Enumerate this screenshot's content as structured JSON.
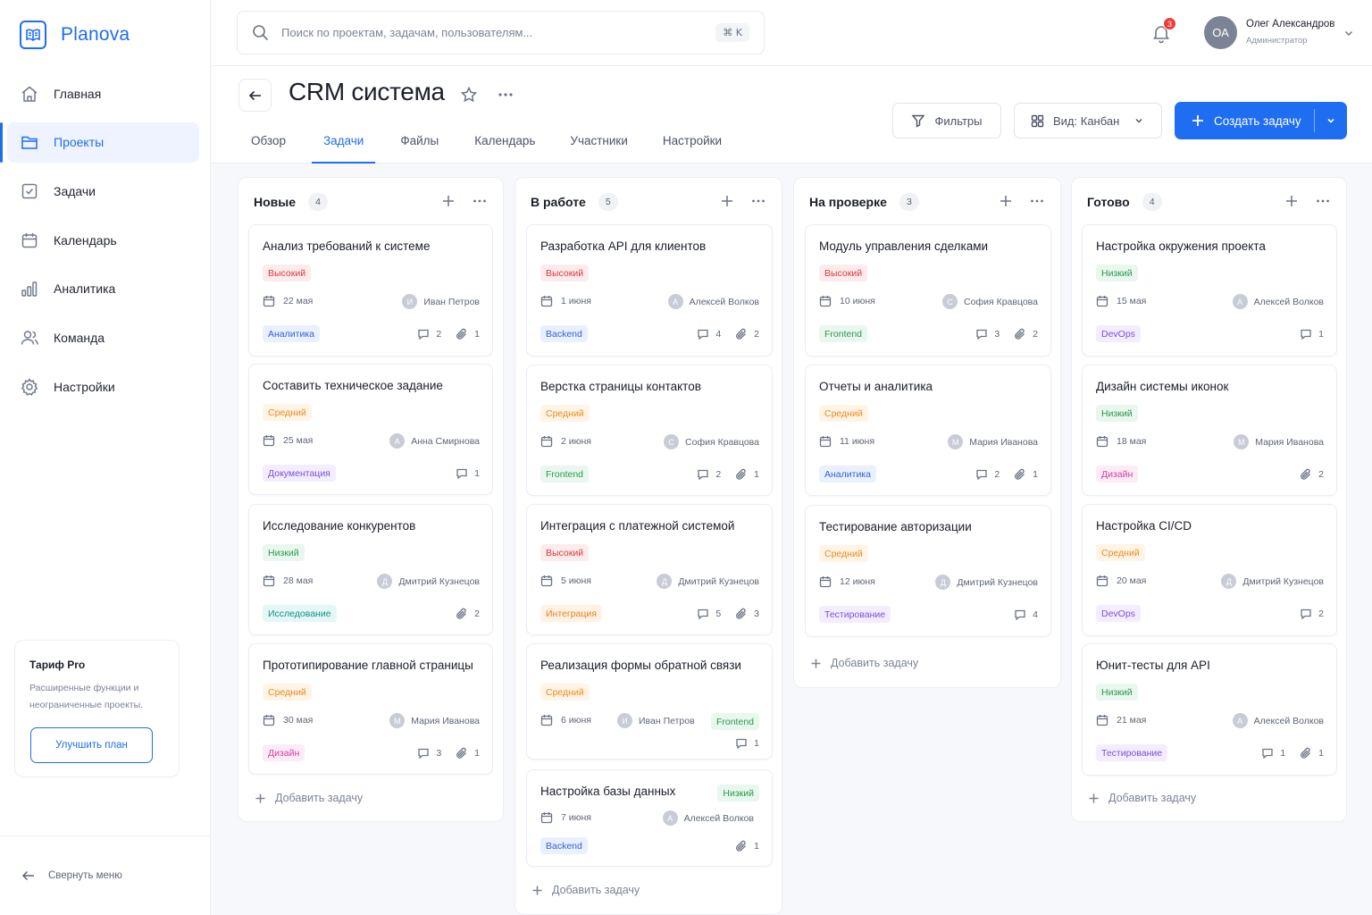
{
  "brand": {
    "name": "Planova"
  },
  "sidebar": {
    "items": [
      {
        "label": "Главная",
        "icon": "home-icon",
        "active": false
      },
      {
        "label": "Проекты",
        "icon": "folder-icon",
        "active": true
      },
      {
        "label": "Задачи",
        "icon": "checkbox-icon",
        "active": false
      },
      {
        "label": "Календарь",
        "icon": "calendar-icon",
        "active": false
      },
      {
        "label": "Аналитика",
        "icon": "chart-icon",
        "active": false
      },
      {
        "label": "Команда",
        "icon": "users-icon",
        "active": false
      },
      {
        "label": "Настройки",
        "icon": "gear-icon",
        "active": false
      }
    ],
    "plan": {
      "title": "Тариф Pro",
      "desc": "Расширенные функции и неограниченные проекты.",
      "button": "Улучшить план"
    },
    "collapse_label": "Свернуть меню"
  },
  "topbar": {
    "search_placeholder": "Поиск по проектам, задачам, пользователям...",
    "shortcut": "⌘ K",
    "notifications": "3",
    "user": {
      "initials": "ОА",
      "name": "Олег Александров",
      "role": "Администратор"
    }
  },
  "header": {
    "title": "CRM система",
    "tabs": [
      "Обзор",
      "Задачи",
      "Файлы",
      "Календарь",
      "Участники",
      "Настройки"
    ],
    "active_tab": 1,
    "filters_label": "Фильтры",
    "view_label": "Вид: Канбан",
    "create_label": "Создать задачу"
  },
  "board": {
    "add_task_label": "Добавить задачу",
    "columns": [
      {
        "title": "Новые",
        "count": "4",
        "cards": [
          {
            "title": "Анализ требований к системе",
            "priority": "Высокий",
            "pclass": "p-high",
            "date": "22 мая",
            "assignee": "Иван Петров",
            "initial": "И",
            "tag": "Аналитика",
            "tclass": "t-blue",
            "comments": "2",
            "attachments": "1"
          },
          {
            "title": "Составить техническое задание",
            "priority": "Средний",
            "pclass": "p-mid",
            "date": "25 мая",
            "assignee": "Анна Смирнова",
            "initial": "А",
            "tag": "Документация",
            "tclass": "t-purple",
            "comments": "1",
            "attachments": ""
          },
          {
            "title": "Исследование конкурентов",
            "priority": "Низкий",
            "pclass": "p-low",
            "date": "28 мая",
            "assignee": "Дмитрий Кузнецов",
            "initial": "Д",
            "tag": "Исследование",
            "tclass": "t-teal",
            "comments": "",
            "attachments": "2"
          },
          {
            "title": "Прототипирование главной страницы",
            "priority": "Средний",
            "pclass": "p-mid",
            "date": "30 мая",
            "assignee": "Мария Иванова",
            "initial": "М",
            "tag": "Дизайн",
            "tclass": "t-pink",
            "comments": "3",
            "attachments": "1"
          }
        ]
      },
      {
        "title": "В работе",
        "count": "5",
        "cards": [
          {
            "title": "Разработка API для клиентов",
            "priority": "Высокий",
            "pclass": "p-high",
            "date": "1 июня",
            "assignee": "Алексей Волков",
            "initial": "А",
            "tag": "Backend",
            "tclass": "t-blue",
            "comments": "4",
            "attachments": "2"
          },
          {
            "title": "Верстка страницы контактов",
            "priority": "Средний",
            "pclass": "p-mid",
            "date": "2 июня",
            "assignee": "София Кравцова",
            "initial": "С",
            "tag": "Frontend",
            "tclass": "t-green",
            "comments": "2",
            "attachments": "1"
          },
          {
            "title": "Интеграция с платежной системой",
            "priority": "Высокий",
            "pclass": "p-high",
            "date": "5 июня",
            "assignee": "Дмитрий Кузнецов",
            "initial": "Д",
            "tag": "Интеграция",
            "tclass": "t-orange",
            "comments": "5",
            "attachments": "3"
          },
          {
            "title": "Реализация формы обратной связи",
            "priority": "Средний",
            "pclass": "p-mid",
            "date": "6 июня",
            "assignee": "Иван Петров",
            "initial": "И",
            "tag": "Frontend",
            "tclass": "t-green",
            "comments": "1",
            "attachments": ""
          },
          {
            "title": "Настройка базы данных",
            "priority": "Низкий",
            "pclass": "p-low",
            "date": "7 июня",
            "assignee": "Алексей Волков",
            "initial": "А",
            "tag": "Backend",
            "tclass": "t-blue",
            "comments": "",
            "attachments": "1"
          }
        ]
      },
      {
        "title": "На проверке",
        "count": "3",
        "cards": [
          {
            "title": "Модуль управления сделками",
            "priority": "Высокий",
            "pclass": "p-high",
            "date": "10 июня",
            "assignee": "София Кравцова",
            "initial": "С",
            "tag": "Frontend",
            "tclass": "t-green",
            "comments": "3",
            "attachments": "2"
          },
          {
            "title": "Отчеты и аналитика",
            "priority": "Средний",
            "pclass": "p-mid",
            "date": "11 июня",
            "assignee": "Мария Иванова",
            "initial": "М",
            "tag": "Аналитика",
            "tclass": "t-blue",
            "comments": "2",
            "attachments": "1"
          },
          {
            "title": "Тестирование авторизации",
            "priority": "Средний",
            "pclass": "p-mid",
            "date": "12 июня",
            "assignee": "Дмитрий Кузнецов",
            "initial": "Д",
            "tag": "Тестирование",
            "tclass": "t-purple",
            "comments": "4",
            "attachments": ""
          }
        ]
      },
      {
        "title": "Готово",
        "count": "4",
        "cards": [
          {
            "title": "Настройка окружения проекта",
            "priority": "Низкий",
            "pclass": "p-low",
            "date": "15 мая",
            "assignee": "Алексей Волков",
            "initial": "А",
            "tag": "DevOps",
            "tclass": "t-purple",
            "comments": "1",
            "attachments": ""
          },
          {
            "title": "Дизайн системы иконок",
            "priority": "Низкий",
            "pclass": "p-low",
            "date": "18 мая",
            "assignee": "Мария Иванова",
            "initial": "М",
            "tag": "Дизайн",
            "tclass": "t-pink",
            "comments": "",
            "attachments": "2"
          },
          {
            "title": "Настройка CI/CD",
            "priority": "Средний",
            "pclass": "p-mid",
            "date": "20 мая",
            "assignee": "Дмитрий Кузнецов",
            "initial": "Д",
            "tag": "DevOps",
            "tclass": "t-purple",
            "comments": "2",
            "attachments": ""
          },
          {
            "title": "Юнит-тесты для API",
            "priority": "Низкий",
            "pclass": "p-low",
            "date": "21 мая",
            "assignee": "Алексей Волков",
            "initial": "А",
            "tag": "Тестирование",
            "tclass": "t-purple",
            "comments": "1",
            "attachments": "1"
          }
        ]
      }
    ]
  }
}
